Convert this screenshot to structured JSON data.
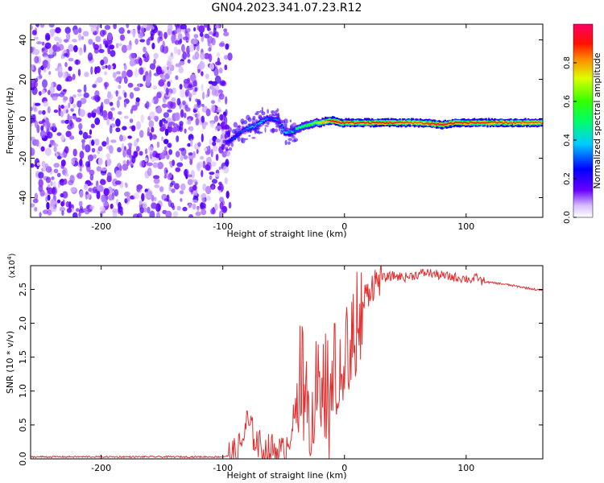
{
  "title": "GN04.2023.341.07.23.R12",
  "chart_data": [
    {
      "type": "heatmap",
      "xlabel": "Height of straight line (km)",
      "ylabel": "Frequency (Hz)",
      "xlim": [
        -258,
        163
      ],
      "ylim": [
        -50,
        48
      ],
      "x_ticks": [
        -200,
        -100,
        0,
        100
      ],
      "x_tick_labels": [
        "-200",
        "-100",
        "0",
        "100"
      ],
      "y_ticks": [
        -40,
        -20,
        0,
        20,
        40
      ],
      "y_tick_labels": [
        "-40",
        "-20",
        "0",
        "20",
        "40"
      ],
      "noise_region_x": [
        -258,
        -98
      ],
      "ridge": {
        "x": [
          -98,
          -92,
          -85,
          -80,
          -75,
          -70,
          -65,
          -60,
          -55,
          -50,
          -45,
          -40,
          -35,
          -30,
          -25,
          -20,
          -15,
          -10,
          -5,
          0,
          20,
          40,
          60,
          80,
          90,
          100,
          110,
          130,
          163
        ],
        "frequency": [
          -12,
          -10,
          -6,
          -5,
          -4,
          -2,
          0,
          0,
          -1,
          -7,
          -7,
          -5,
          -4,
          -3,
          -2,
          -2,
          -1,
          -1,
          -2,
          -2,
          -2,
          -2,
          -2,
          -3,
          -2,
          -2,
          -2,
          -2,
          -2
        ],
        "amplitude": [
          0.2,
          0.3,
          0.3,
          0.35,
          0.4,
          0.4,
          0.35,
          0.3,
          0.35,
          0.4,
          0.45,
          0.5,
          0.55,
          0.6,
          0.65,
          0.75,
          0.85,
          0.95,
          0.9,
          0.9,
          0.9,
          0.9,
          0.85,
          0.95,
          0.9,
          0.9,
          0.9,
          0.88,
          0.85
        ]
      },
      "colorbar": {
        "label": "Normalized spectral amplitude",
        "range": [
          0.0,
          1.0
        ],
        "ticks": [
          0.0,
          0.2,
          0.4,
          0.6,
          0.8
        ],
        "tick_labels": [
          "0.0",
          "0.2",
          "0.4",
          "0.6",
          "0.8"
        ],
        "colormap": [
          "#ffffff",
          "#5500ff",
          "#0000ff",
          "#00ffff",
          "#00ff00",
          "#ffff00",
          "#ff0000",
          "#ff0055"
        ]
      }
    },
    {
      "type": "line",
      "xlabel": "Height of straight line (km)",
      "ylabel": "SNR (10 * v/v)",
      "exponent_label": "(x10",
      "exponent_sup": "4",
      "exponent_close": ")",
      "xlim": [
        -258,
        163
      ],
      "ylim": [
        0,
        2.85
      ],
      "x_ticks": [
        -200,
        -100,
        0,
        100
      ],
      "x_tick_labels": [
        "-200",
        "-100",
        "0",
        "100"
      ],
      "y_ticks": [
        0.0,
        0.5,
        1.0,
        1.5,
        2.0,
        2.5
      ],
      "y_tick_labels": [
        "0.0",
        "0.5",
        "1.0",
        "1.5",
        "2.0",
        "2.5"
      ],
      "series": [
        {
          "color": "#e03030",
          "x": [
            -258,
            -200,
            -150,
            -100,
            -90,
            -85,
            -80,
            -75,
            -70,
            -65,
            -60,
            -55,
            -50,
            -45,
            -40,
            -37,
            -35,
            -30,
            -25,
            -20,
            -15,
            -12,
            -10,
            -5,
            0,
            5,
            10,
            15,
            20,
            25,
            30,
            40,
            50,
            60,
            68,
            75,
            80,
            90,
            100,
            105,
            110,
            112,
            120,
            130,
            140,
            150,
            163
          ],
          "y": [
            0.03,
            0.03,
            0.03,
            0.03,
            0.06,
            0.2,
            0.55,
            0.35,
            0.2,
            0.1,
            0.15,
            0.12,
            0.08,
            0.35,
            0.7,
            1.5,
            1.2,
            0.8,
            1.1,
            0.9,
            1.0,
            0.85,
            1.1,
            1.3,
            1.5,
            1.7,
            1.9,
            2.3,
            2.5,
            2.6,
            2.66,
            2.7,
            2.68,
            2.72,
            2.75,
            2.72,
            2.7,
            2.68,
            2.66,
            2.64,
            2.68,
            2.62,
            2.6,
            2.58,
            2.55,
            2.52,
            2.48
          ]
        }
      ]
    }
  ]
}
